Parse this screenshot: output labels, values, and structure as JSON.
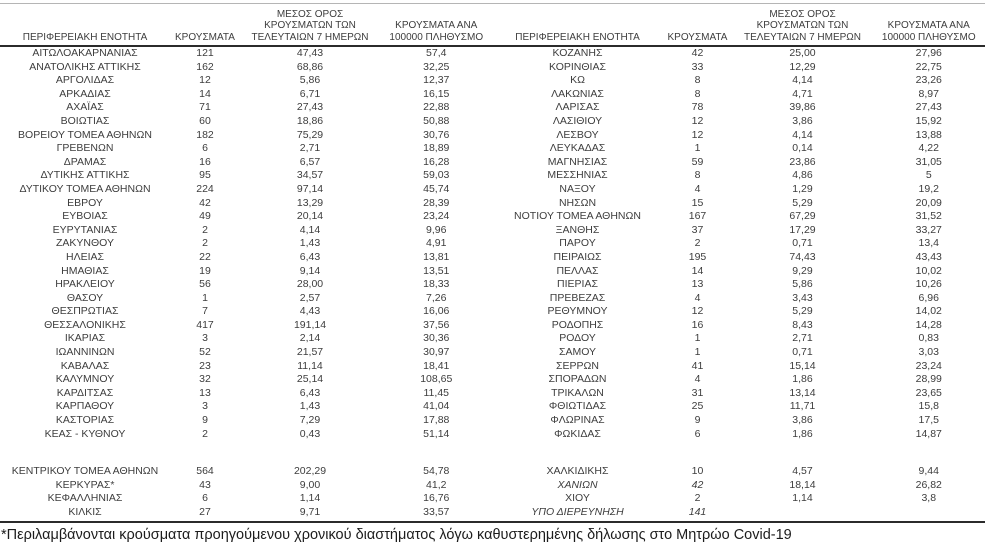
{
  "table": {
    "columns": [
      "ΠΕΡΙΦΕΡΕΙΑΚΗ ΕΝΟΤΗΤΑ",
      "ΚΡΟΥΣΜΑΤΑ",
      "ΜΕΣΟΣ ΟΡΟΣ\nΚΡΟΥΣΜΑΤΩΝ ΤΩΝ\nΤΕΛΕΥΤΑΙΩΝ 7 ΗΜΕΡΩΝ",
      "ΚΡΟΥΣΜΑΤΑ ΑΝΑ\n100000 ΠΛΗΘΥΣΜΟ"
    ],
    "left": {
      "block1": [
        {
          "region": "ΑΙΤΩΛΟΑΚΑΡΝΑΝΙΑΣ",
          "cases": "121",
          "avg7": "47,43",
          "per100k": "57,4"
        },
        {
          "region": "ΑΝΑΤΟΛΙΚΗΣ ΑΤΤΙΚΗΣ",
          "cases": "162",
          "avg7": "68,86",
          "per100k": "32,25"
        },
        {
          "region": "ΑΡΓΟΛΙΔΑΣ",
          "cases": "12",
          "avg7": "5,86",
          "per100k": "12,37"
        },
        {
          "region": "ΑΡΚΑΔΙΑΣ",
          "cases": "14",
          "avg7": "6,71",
          "per100k": "16,15"
        },
        {
          "region": "ΑΧΑΪΑΣ",
          "cases": "71",
          "avg7": "27,43",
          "per100k": "22,88"
        },
        {
          "region": "ΒΟΙΩΤΙΑΣ",
          "cases": "60",
          "avg7": "18,86",
          "per100k": "50,88"
        },
        {
          "region": "ΒΟΡΕΙΟΥ ΤΟΜΕΑ ΑΘΗΝΩΝ",
          "cases": "182",
          "avg7": "75,29",
          "per100k": "30,76"
        },
        {
          "region": "ΓΡΕΒΕΝΩΝ",
          "cases": "6",
          "avg7": "2,71",
          "per100k": "18,89"
        },
        {
          "region": "ΔΡΑΜΑΣ",
          "cases": "16",
          "avg7": "6,57",
          "per100k": "16,28"
        },
        {
          "region": "ΔΥΤΙΚΗΣ ΑΤΤΙΚΗΣ",
          "cases": "95",
          "avg7": "34,57",
          "per100k": "59,03"
        },
        {
          "region": "ΔΥΤΙΚΟΥ ΤΟΜΕΑ ΑΘΗΝΩΝ",
          "cases": "224",
          "avg7": "97,14",
          "per100k": "45,74"
        },
        {
          "region": "ΕΒΡΟΥ",
          "cases": "42",
          "avg7": "13,29",
          "per100k": "28,39"
        },
        {
          "region": "ΕΥΒΟΙΑΣ",
          "cases": "49",
          "avg7": "20,14",
          "per100k": "23,24"
        },
        {
          "region": "ΕΥΡΥΤΑΝΙΑΣ",
          "cases": "2",
          "avg7": "4,14",
          "per100k": "9,96"
        },
        {
          "region": "ΖΑΚΥΝΘΟΥ",
          "cases": "2",
          "avg7": "1,43",
          "per100k": "4,91"
        },
        {
          "region": "ΗΛΕΙΑΣ",
          "cases": "22",
          "avg7": "6,43",
          "per100k": "13,81"
        },
        {
          "region": "ΗΜΑΘΙΑΣ",
          "cases": "19",
          "avg7": "9,14",
          "per100k": "13,51"
        },
        {
          "region": "ΗΡΑΚΛΕΙΟΥ",
          "cases": "56",
          "avg7": "28,00",
          "per100k": "18,33"
        },
        {
          "region": "ΘΑΣΟΥ",
          "cases": "1",
          "avg7": "2,57",
          "per100k": "7,26"
        },
        {
          "region": "ΘΕΣΠΡΩΤΙΑΣ",
          "cases": "7",
          "avg7": "4,43",
          "per100k": "16,06"
        },
        {
          "region": "ΘΕΣΣΑΛΟΝΙΚΗΣ",
          "cases": "417",
          "avg7": "191,14",
          "per100k": "37,56"
        },
        {
          "region": "ΙΚΑΡΙΑΣ",
          "cases": "3",
          "avg7": "2,14",
          "per100k": "30,36"
        },
        {
          "region": "ΙΩΑΝΝΙΝΩΝ",
          "cases": "52",
          "avg7": "21,57",
          "per100k": "30,97"
        },
        {
          "region": "ΚΑΒΑΛΑΣ",
          "cases": "23",
          "avg7": "11,14",
          "per100k": "18,41"
        },
        {
          "region": "ΚΑΛΥΜΝΟΥ",
          "cases": "32",
          "avg7": "25,14",
          "per100k": "108,65"
        },
        {
          "region": "ΚΑΡΔΙΤΣΑΣ",
          "cases": "13",
          "avg7": "6,43",
          "per100k": "11,45"
        },
        {
          "region": "ΚΑΡΠΑΘΟΥ",
          "cases": "3",
          "avg7": "1,43",
          "per100k": "41,04"
        },
        {
          "region": "ΚΑΣΤΟΡΙΑΣ",
          "cases": "9",
          "avg7": "7,29",
          "per100k": "17,88"
        },
        {
          "region": "ΚΕΑΣ - ΚΥΘΝΟΥ",
          "cases": "2",
          "avg7": "0,43",
          "per100k": "51,14"
        }
      ],
      "block2": [
        {
          "region": "ΚΕΝΤΡΙΚΟΥ ΤΟΜΕΑ ΑΘΗΝΩΝ",
          "cases": "564",
          "avg7": "202,29",
          "per100k": "54,78"
        },
        {
          "region": "ΚΕΡΚΥΡΑΣ*",
          "cases": "43",
          "avg7": "9,00",
          "per100k": "41,2"
        },
        {
          "region": "ΚΕΦΑΛΛΗΝΙΑΣ",
          "cases": "6",
          "avg7": "1,14",
          "per100k": "16,76"
        },
        {
          "region": "ΚΙΛΚΙΣ",
          "cases": "27",
          "avg7": "9,71",
          "per100k": "33,57"
        }
      ]
    },
    "right": {
      "block1": [
        {
          "region": "ΚΟΖΑΝΗΣ",
          "cases": "42",
          "avg7": "25,00",
          "per100k": "27,96"
        },
        {
          "region": "ΚΟΡΙΝΘΙΑΣ",
          "cases": "33",
          "avg7": "12,29",
          "per100k": "22,75"
        },
        {
          "region": "ΚΩ",
          "cases": "8",
          "avg7": "4,14",
          "per100k": "23,26"
        },
        {
          "region": "ΛΑΚΩΝΙΑΣ",
          "cases": "8",
          "avg7": "4,71",
          "per100k": "8,97"
        },
        {
          "region": "ΛΑΡΙΣΑΣ",
          "cases": "78",
          "avg7": "39,86",
          "per100k": "27,43"
        },
        {
          "region": "ΛΑΣΙΘΙΟΥ",
          "cases": "12",
          "avg7": "3,86",
          "per100k": "15,92"
        },
        {
          "region": "ΛΕΣΒΟΥ",
          "cases": "12",
          "avg7": "4,14",
          "per100k": "13,88"
        },
        {
          "region": "ΛΕΥΚΑΔΑΣ",
          "cases": "1",
          "avg7": "0,14",
          "per100k": "4,22"
        },
        {
          "region": "ΜΑΓΝΗΣΙΑΣ",
          "cases": "59",
          "avg7": "23,86",
          "per100k": "31,05"
        },
        {
          "region": "ΜΕΣΣΗΝΙΑΣ",
          "cases": "8",
          "avg7": "4,86",
          "per100k": "5"
        },
        {
          "region": "ΝΑΞΟΥ",
          "cases": "4",
          "avg7": "1,29",
          "per100k": "19,2"
        },
        {
          "region": "ΝΗΣΩΝ",
          "cases": "15",
          "avg7": "5,29",
          "per100k": "20,09"
        },
        {
          "region": "ΝΟΤΙΟΥ ΤΟΜΕΑ ΑΘΗΝΩΝ",
          "cases": "167",
          "avg7": "67,29",
          "per100k": "31,52"
        },
        {
          "region": "ΞΑΝΘΗΣ",
          "cases": "37",
          "avg7": "17,29",
          "per100k": "33,27"
        },
        {
          "region": "ΠΑΡΟΥ",
          "cases": "2",
          "avg7": "0,71",
          "per100k": "13,4"
        },
        {
          "region": "ΠΕΙΡΑΙΩΣ",
          "cases": "195",
          "avg7": "74,43",
          "per100k": "43,43"
        },
        {
          "region": "ΠΕΛΛΑΣ",
          "cases": "14",
          "avg7": "9,29",
          "per100k": "10,02"
        },
        {
          "region": "ΠΙΕΡΙΑΣ",
          "cases": "13",
          "avg7": "5,86",
          "per100k": "10,26"
        },
        {
          "region": "ΠΡΕΒΕΖΑΣ",
          "cases": "4",
          "avg7": "3,43",
          "per100k": "6,96"
        },
        {
          "region": "ΡΕΘΥΜΝΟΥ",
          "cases": "12",
          "avg7": "5,29",
          "per100k": "14,02"
        },
        {
          "region": "ΡΟΔΟΠΗΣ",
          "cases": "16",
          "avg7": "8,43",
          "per100k": "14,28"
        },
        {
          "region": "ΡΟΔΟΥ",
          "cases": "1",
          "avg7": "2,71",
          "per100k": "0,83"
        },
        {
          "region": "ΣΑΜΟΥ",
          "cases": "1",
          "avg7": "0,71",
          "per100k": "3,03"
        },
        {
          "region": "ΣΕΡΡΩΝ",
          "cases": "41",
          "avg7": "15,14",
          "per100k": "23,24"
        },
        {
          "region": "ΣΠΟΡΑΔΩΝ",
          "cases": "4",
          "avg7": "1,86",
          "per100k": "28,99"
        },
        {
          "region": "ΤΡΙΚΑΛΩΝ",
          "cases": "31",
          "avg7": "13,14",
          "per100k": "23,65"
        },
        {
          "region": "ΦΘΙΩΤΙΔΑΣ",
          "cases": "25",
          "avg7": "11,71",
          "per100k": "15,8"
        },
        {
          "region": "ΦΛΩΡΙΝΑΣ",
          "cases": "9",
          "avg7": "3,86",
          "per100k": "17,5"
        },
        {
          "region": "ΦΩΚΙΔΑΣ",
          "cases": "6",
          "avg7": "1,86",
          "per100k": "14,87"
        }
      ],
      "block2": [
        {
          "region": "ΧΑΛΚΙΔΙΚΗΣ",
          "cases": "10",
          "avg7": "4,57",
          "per100k": "9,44"
        },
        {
          "region": "ΧΑΝΙΩΝ",
          "cases": "42",
          "avg7": "18,14",
          "per100k": "26,82",
          "italic": true
        },
        {
          "region": "ΧΙΟΥ",
          "cases": "2",
          "avg7": "1,14",
          "per100k": "3,8"
        },
        {
          "region": "ΥΠΟ ΔΙΕΡΕΥΝΗΣΗ",
          "cases": "141",
          "avg7": "",
          "per100k": "",
          "italic": true
        }
      ]
    }
  },
  "footnote": "*Περιλαμβάνονται κρούσματα προηγούμενου χρονικού διαστήματος λόγω καθυστερημένης δήλωσης στο Μητρώο Covid-19"
}
